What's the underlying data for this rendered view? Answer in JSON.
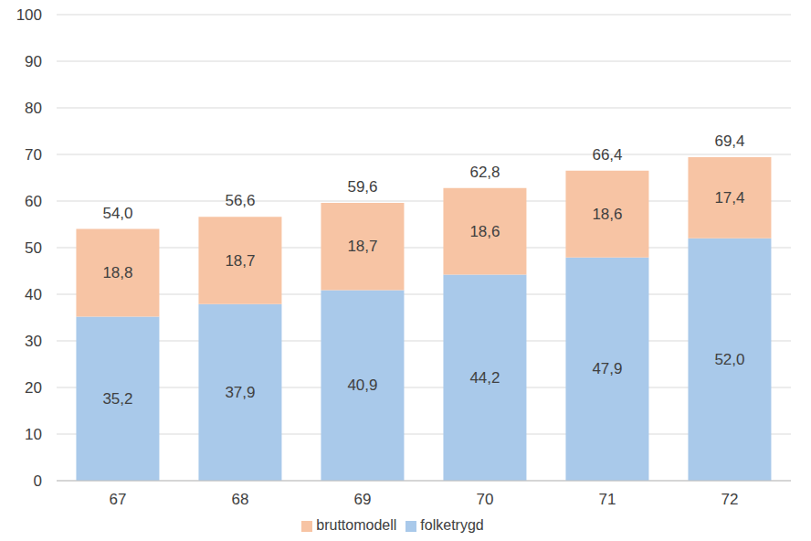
{
  "chart_data": {
    "type": "bar",
    "stacked": true,
    "data_labels": true,
    "grid": true,
    "legend": "bottom",
    "categories": [
      "67",
      "68",
      "69",
      "70",
      "71",
      "72"
    ],
    "series": [
      {
        "name": "folketrygd",
        "color": "#a9c9ea",
        "values": [
          35.2,
          37.9,
          40.9,
          44.2,
          47.9,
          52.0
        ],
        "value_labels": [
          "35,2",
          "37,9",
          "40,9",
          "44,2",
          "47,9",
          "52,0"
        ]
      },
      {
        "name": "bruttomodell",
        "color": "#f7c4a4",
        "values": [
          18.8,
          18.7,
          18.7,
          18.6,
          18.6,
          17.4
        ],
        "value_labels": [
          "18,8",
          "18,7",
          "18,7",
          "18,6",
          "18,6",
          "17,4"
        ]
      }
    ],
    "totals": [
      54.0,
      56.6,
      59.6,
      62.8,
      66.4,
      69.4
    ],
    "total_labels": [
      "54,0",
      "56,6",
      "59,6",
      "62,8",
      "66,4",
      "69,4"
    ],
    "ylim": [
      0,
      100
    ],
    "yticks": [
      0,
      10,
      20,
      30,
      40,
      50,
      60,
      70,
      80,
      90,
      100
    ]
  }
}
